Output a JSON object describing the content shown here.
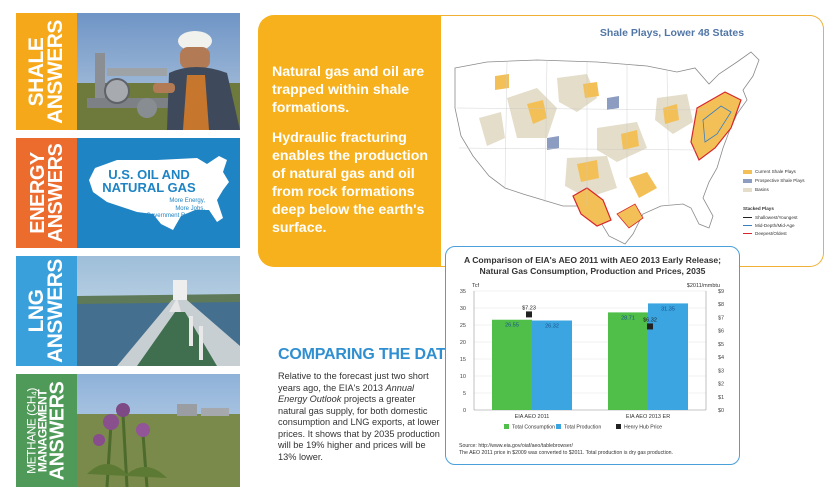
{
  "tiles": [
    {
      "id": "shale",
      "line1": "SHALE",
      "line2": "ANSWERS",
      "color": "#f6a81b"
    },
    {
      "id": "energy",
      "line1": "ENERGY",
      "line2": "ANSWERS",
      "color": "#ec6c2d",
      "headline1": "U.S. OIL AND",
      "headline2": "NATURAL GAS",
      "tag1": "More Energy,",
      "tag2": "More Jobs,",
      "tag3": "More Government Revenue"
    },
    {
      "id": "lng",
      "line1": "LNG",
      "line2": "ANSWERS",
      "color": "#3aa0dc"
    },
    {
      "id": "methane",
      "line1": "METHANE (CH₄)",
      "line1b": "MANAGEMENT",
      "line2": "ANSWERS",
      "color": "#4f9a58"
    }
  ],
  "info": {
    "p1": "Natural gas and oil are trapped within shale formations.",
    "p2": "Hydraulic fracturing enables the production of natural gas and oil from rock formations deep below the earth's surface."
  },
  "map": {
    "title": "Shale Plays, Lower 48 States",
    "legend": {
      "current": "Current Shale Plays",
      "prospective": "Prospective Shale Plays",
      "basins": "Basins",
      "stacked_head": "Stacked Plays",
      "shallowest": "Shallowest/Youngest",
      "middepth": "Mid-Depth/Mid-Age",
      "deepest": "Deepest/Oldest"
    },
    "colors": {
      "current": "#f3c058",
      "prospective": "#8d9dc2",
      "basins": "#e3ddc9"
    }
  },
  "compare": {
    "title": "COMPARING THE DATA",
    "body_a": "Relative to the forecast just two short years ago, the EIA's 2013 ",
    "body_em": "Annual Energy Outlook",
    "body_b": " projects a greater natural gas supply, for both domestic consumption and LNG exports, at lower prices. It shows that by 2035 production will be 19% higher and prices will be 13% lower."
  },
  "chart_data": {
    "type": "bar",
    "title_line1": "A Comparison of EIA's AEO 2011 with AEO 2013 Early Release;",
    "title_line2": "Natural Gas Consumption, Production and Prices, 2035",
    "categories": [
      "EIA AEO 2011",
      "EIA AEO 2013 ER"
    ],
    "ylabel_left": "Tcf",
    "ylabel_right": "$2011/mmbtu",
    "ylim_left": [
      0,
      35
    ],
    "ylim_right": [
      0,
      9
    ],
    "left_ticks": [
      "0",
      "5",
      "10",
      "15",
      "20",
      "25",
      "30",
      "35"
    ],
    "right_ticks": [
      "$0",
      "$1",
      "$2",
      "$3",
      "$4",
      "$5",
      "$6",
      "$7",
      "$8",
      "$9"
    ],
    "series": [
      {
        "name": "Total Consumption",
        "color": "#4fbf4a",
        "values": [
          26.55,
          28.71
        ],
        "labels": [
          "26.55",
          "28.71"
        ]
      },
      {
        "name": "Total Production",
        "color": "#3aa5e0",
        "values": [
          26.32,
          31.35
        ],
        "labels": [
          "26.32",
          "31.35"
        ]
      },
      {
        "name": "Henry Hub Price",
        "color": "#222222",
        "values": [
          7.23,
          6.32
        ],
        "labels": [
          "$7.23",
          "$6.32"
        ],
        "axis": "right"
      }
    ],
    "source_line1": "Source: http://www.eia.gov/oiaf/aeo/tablebrowser/",
    "source_line2": "The AEO 2011 price in $2009 was converted to $2011. Total production is dry gas production."
  }
}
